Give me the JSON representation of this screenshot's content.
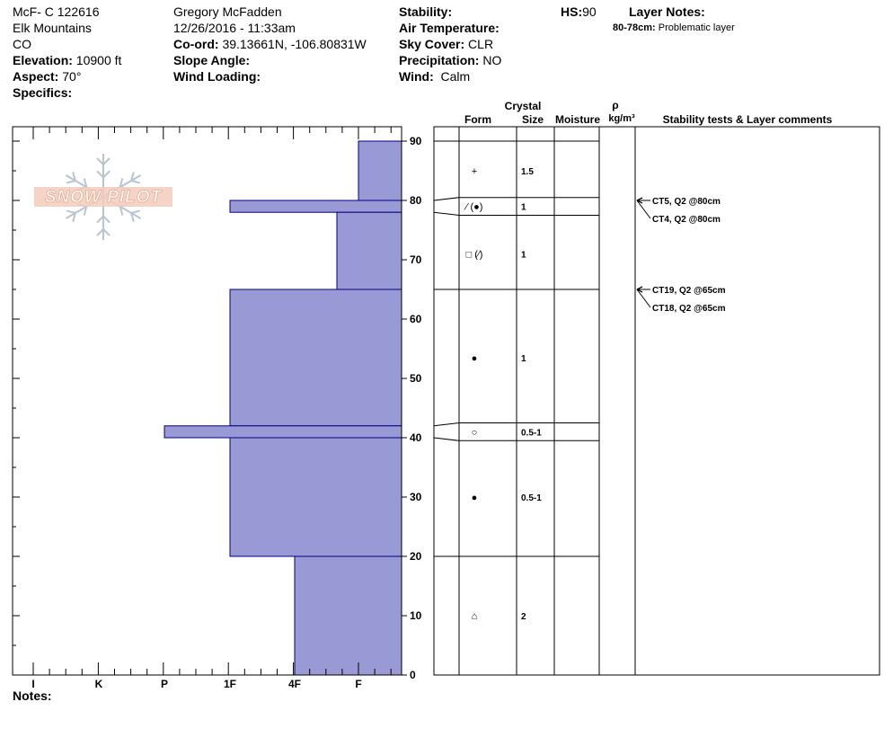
{
  "header": {
    "col1": {
      "pit_id": "McF- C  122616",
      "range": "Elk Mountains",
      "state": "CO",
      "elevation_label": "Elevation:",
      "elevation_value": "10900 ft",
      "aspect_label": "Aspect:",
      "aspect_value": "70°",
      "specifics_label": "Specifics:"
    },
    "col2": {
      "observer": "Gregory McFadden",
      "datetime": "12/26/2016 - 11:33am",
      "coord_label": "Co-ord:",
      "coord_value": "39.13661N, -106.80831W",
      "slope_label": "Slope Angle:",
      "wind_loading_label": "Wind Loading:"
    },
    "col3": {
      "stability_label": "Stability:",
      "air_temp_label": "Air Temperature:",
      "sky_label": "Sky Cover:",
      "sky_value": "CLR",
      "precip_label": "Precipitation:",
      "precip_value": "NO",
      "wind_label": "Wind:",
      "wind_value": "Calm"
    },
    "col4": {
      "hs_label": "HS:",
      "hs_value": "90",
      "layer_notes_label": "Layer Notes:",
      "layer_note_depth": "80-78cm:",
      "layer_note_text": "Problematic layer"
    }
  },
  "logo": {
    "text": "SNOW PILOT",
    "color": "#e8a98c"
  },
  "table_headers": {
    "crystal": "Crystal",
    "form": "Form",
    "size": "Size",
    "moisture": "Moisture",
    "rho": "ρ",
    "density_unit": "kg/m³",
    "stability": "Stability tests & Layer comments"
  },
  "notes_label": "Notes:",
  "colors": {
    "hardness_fill": "#9999d6",
    "hardness_stroke": "#000080"
  },
  "chart_data": {
    "type": "bar",
    "xlabel": "",
    "ylabel": "",
    "ylim": [
      0,
      90
    ],
    "hardness_scale": [
      "I",
      "K",
      "P",
      "1F",
      "4F",
      "F"
    ],
    "y_ticks": [
      0,
      10,
      20,
      30,
      40,
      50,
      60,
      70,
      80,
      90
    ],
    "hardness_layers": [
      {
        "top": 90,
        "bottom": 80,
        "hardness": "F"
      },
      {
        "top": 80,
        "bottom": 78,
        "hardness": "1F"
      },
      {
        "top": 78,
        "bottom": 65,
        "hardness": "4F-F"
      },
      {
        "top": 65,
        "bottom": 42,
        "hardness": "1F"
      },
      {
        "top": 42,
        "bottom": 40,
        "hardness": "P"
      },
      {
        "top": 40,
        "bottom": 20,
        "hardness": "1F"
      },
      {
        "top": 20,
        "bottom": 0,
        "hardness": "4F"
      }
    ],
    "layer_boundaries": [
      90,
      80.5,
      77.5,
      65,
      42.5,
      39.5,
      20,
      0
    ],
    "crystals": [
      {
        "depth": 85,
        "form": "+",
        "size": "1.5"
      },
      {
        "depth": 79,
        "form": "⁄ (●)",
        "size": "1"
      },
      {
        "depth": 71,
        "form": "□ (⁄)",
        "size": "1"
      },
      {
        "depth": 53.5,
        "form": "●",
        "size": "1"
      },
      {
        "depth": 41,
        "form": "○",
        "size": "0.5-1"
      },
      {
        "depth": 30,
        "form": "●",
        "size": "0.5-1"
      },
      {
        "depth": 10,
        "form": "⌂",
        "size": "2"
      }
    ],
    "stability_tests": [
      {
        "depth": 80,
        "text": "CT5, Q2 @80cm"
      },
      {
        "depth": 80,
        "text": "CT4, Q2 @80cm"
      },
      {
        "depth": 65,
        "text": "CT19, Q2 @65cm"
      },
      {
        "depth": 65,
        "text": "CT18, Q2 @65cm"
      }
    ]
  }
}
